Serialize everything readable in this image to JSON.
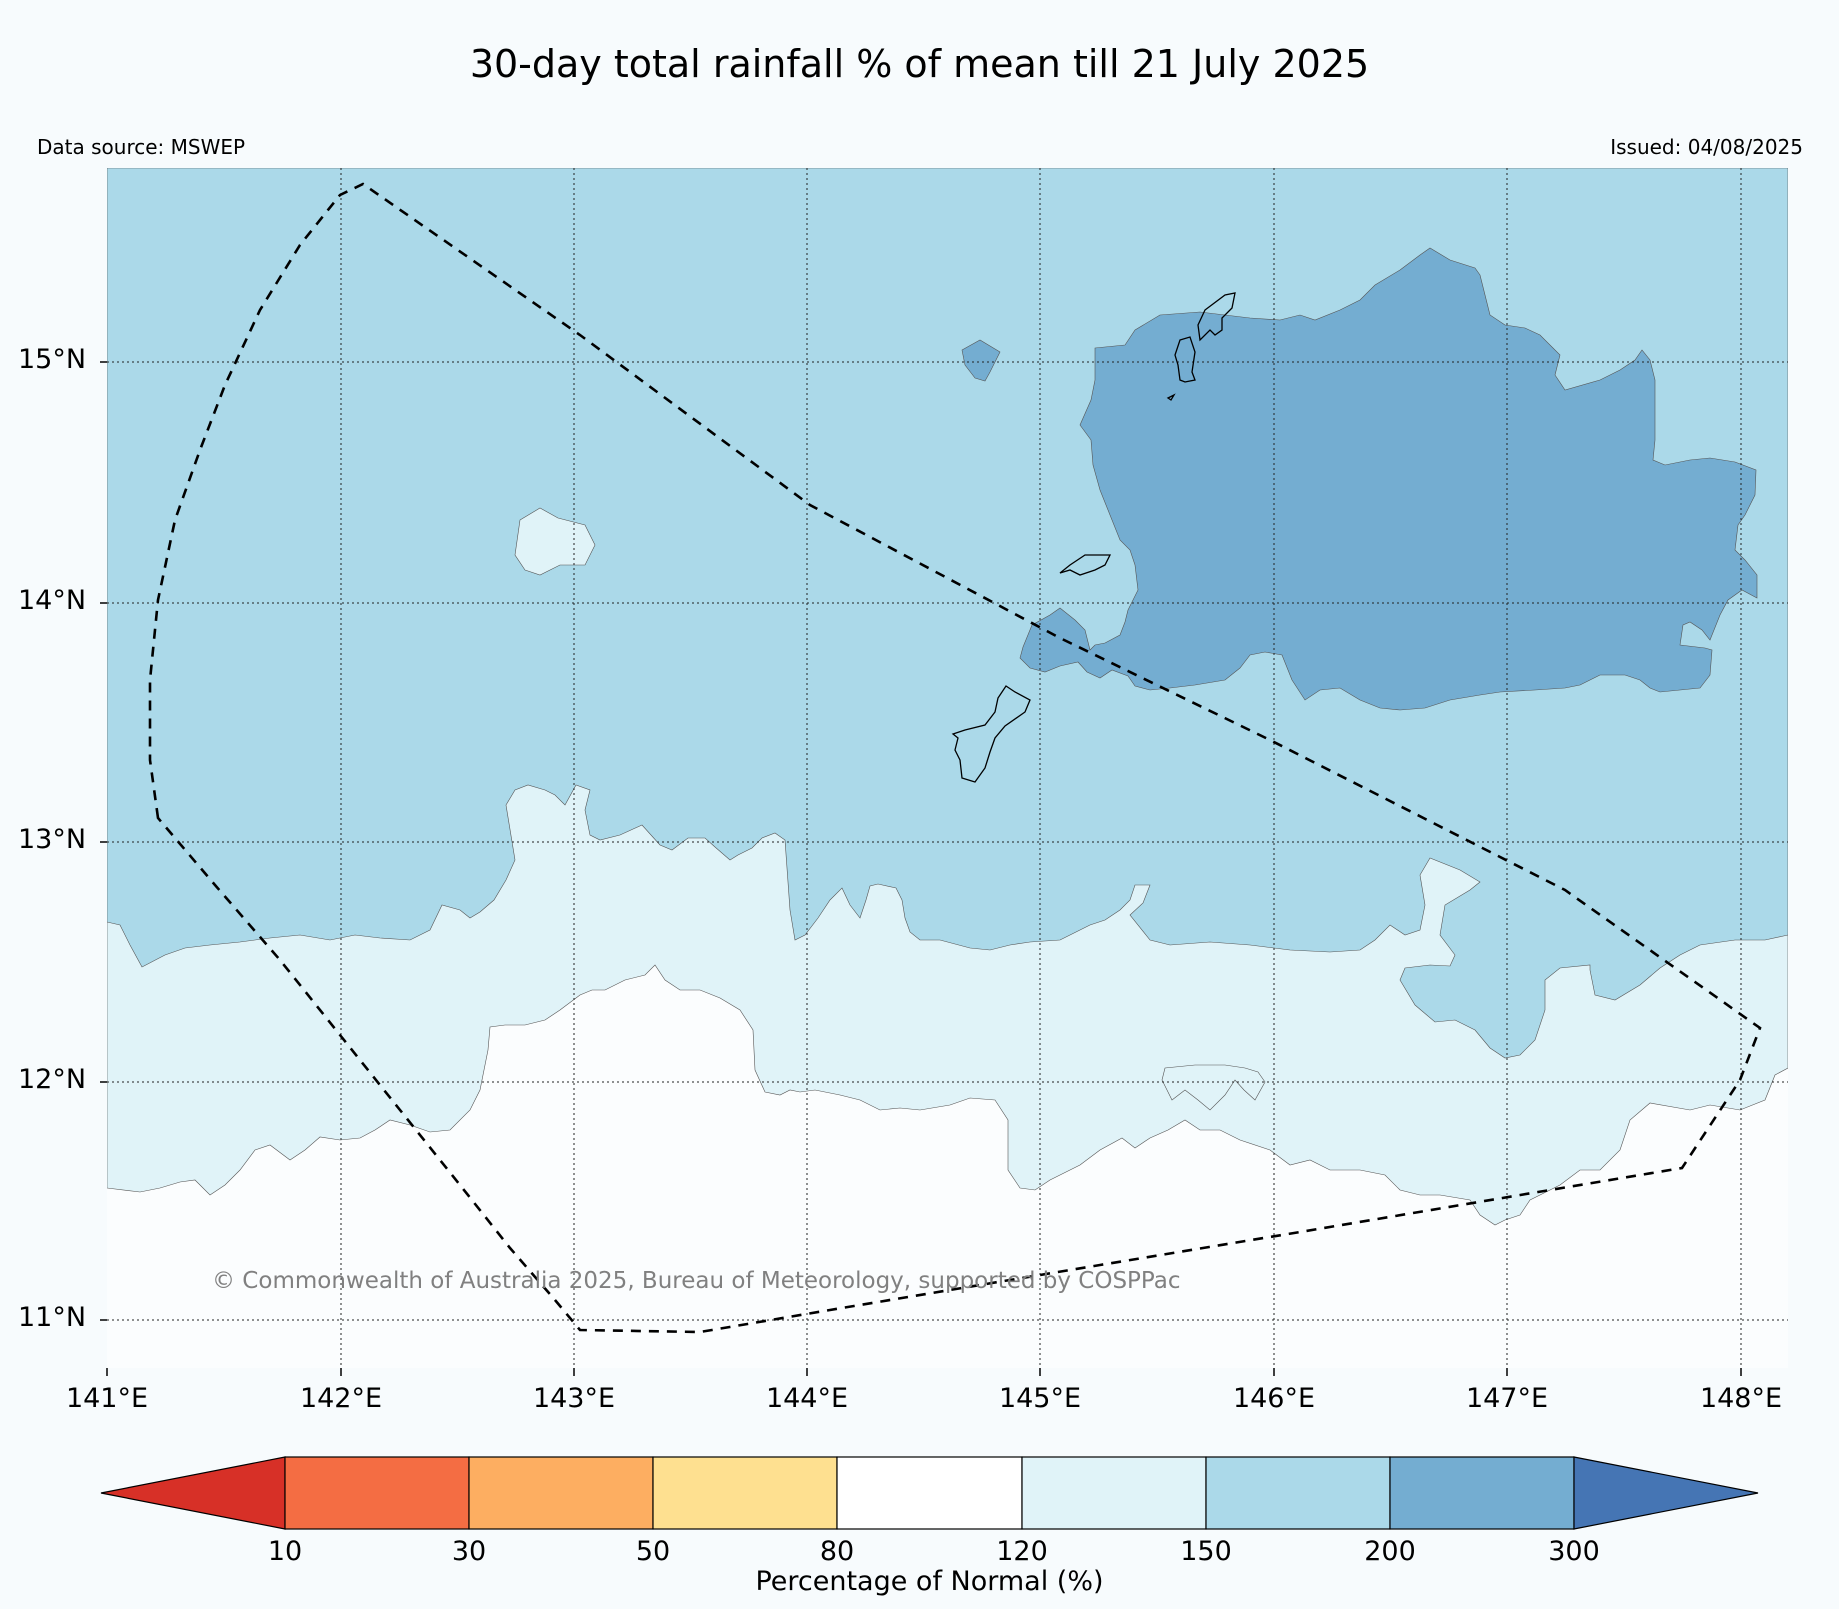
{
  "title": "30-day total rainfall % of mean till 21 July 2025",
  "data_source": "Data source: MSWEP",
  "issued": "Issued: 04/08/2025",
  "copyright": "© Commonwealth of Australia 2025, Bureau of Meteorology, supported by COSPPac",
  "lat_ticks": [
    "15°N",
    "14°N",
    "13°N",
    "12°N",
    "11°N"
  ],
  "lon_ticks": [
    "141°E",
    "142°E",
    "143°E",
    "144°E",
    "145°E",
    "146°E",
    "147°E",
    "148°E"
  ],
  "colorbar": {
    "title": "Percentage of Normal (%)",
    "ticks": [
      "10",
      "30",
      "50",
      "80",
      "120",
      "150",
      "200",
      "300"
    ],
    "colors": [
      "#d73027",
      "#f46d43",
      "#fdae61",
      "#fee090",
      "#ffffff",
      "#e0f3f8",
      "#abd9e9",
      "#74add1",
      "#4575b4"
    ]
  },
  "map_colors": {
    "background": "#f7fbfd",
    "class_120_150": "#e0f3f8",
    "class_150_200": "#abd9e9",
    "class_200_300": "#74add1"
  }
}
